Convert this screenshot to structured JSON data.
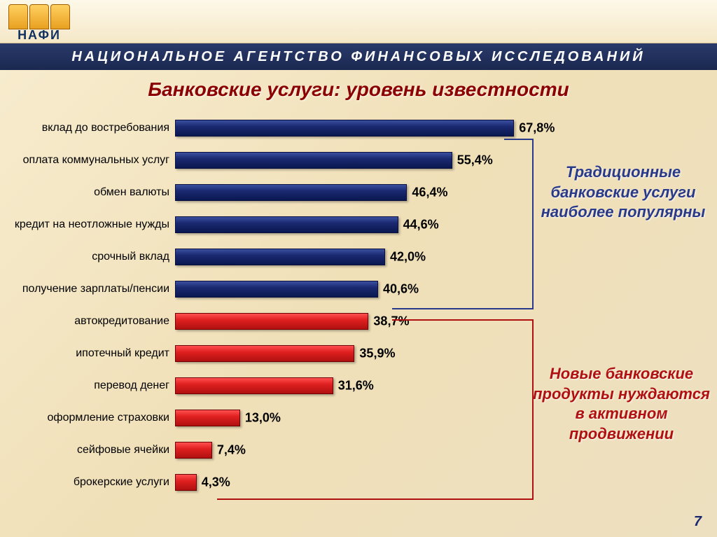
{
  "logo_text": "НАФИ",
  "header": "НАЦИОНАЛЬНОЕ  АГЕНТСТВО  ФИНАНСОВЫХ  ИССЛЕДОВАНИЙ",
  "title": "Банковские услуги: уровень известности",
  "chart": {
    "type": "bar",
    "max": 70,
    "bar_colors": {
      "blue": "#1a2870",
      "red": "#d02020"
    },
    "rows": [
      {
        "label": "вклад до востребования",
        "value": 67.8,
        "group": "blue"
      },
      {
        "label": "оплата коммунальных услуг",
        "value": 55.4,
        "group": "blue"
      },
      {
        "label": "обмен валюты",
        "value": 46.4,
        "group": "blue"
      },
      {
        "label": "кредит на неотложные нужды",
        "value": 44.6,
        "group": "blue"
      },
      {
        "label": "срочный вклад",
        "value": 42.0,
        "group": "blue"
      },
      {
        "label": "получение зарплаты/пенсии",
        "value": 40.6,
        "group": "blue"
      },
      {
        "label": "автокредитование",
        "value": 38.7,
        "group": "red"
      },
      {
        "label": "ипотечный кредит",
        "value": 35.9,
        "group": "red"
      },
      {
        "label": "перевод денег",
        "value": 31.6,
        "group": "red"
      },
      {
        "label": "оформление страховки",
        "value": 13.0,
        "group": "red"
      },
      {
        "label": "сейфовые ячейки",
        "value": 7.4,
        "group": "red"
      },
      {
        "label": "брокерские услуги",
        "value": 4.3,
        "group": "red"
      }
    ]
  },
  "callout1_l1": "Традиционные",
  "callout1_l2": "банковские услуги",
  "callout1_l3": "наиболее популярны",
  "callout2_l1": "Новые банковские",
  "callout2_l2": "продукты нуждаются",
  "callout2_l3": "в активном продвижении",
  "page_number": "7"
}
